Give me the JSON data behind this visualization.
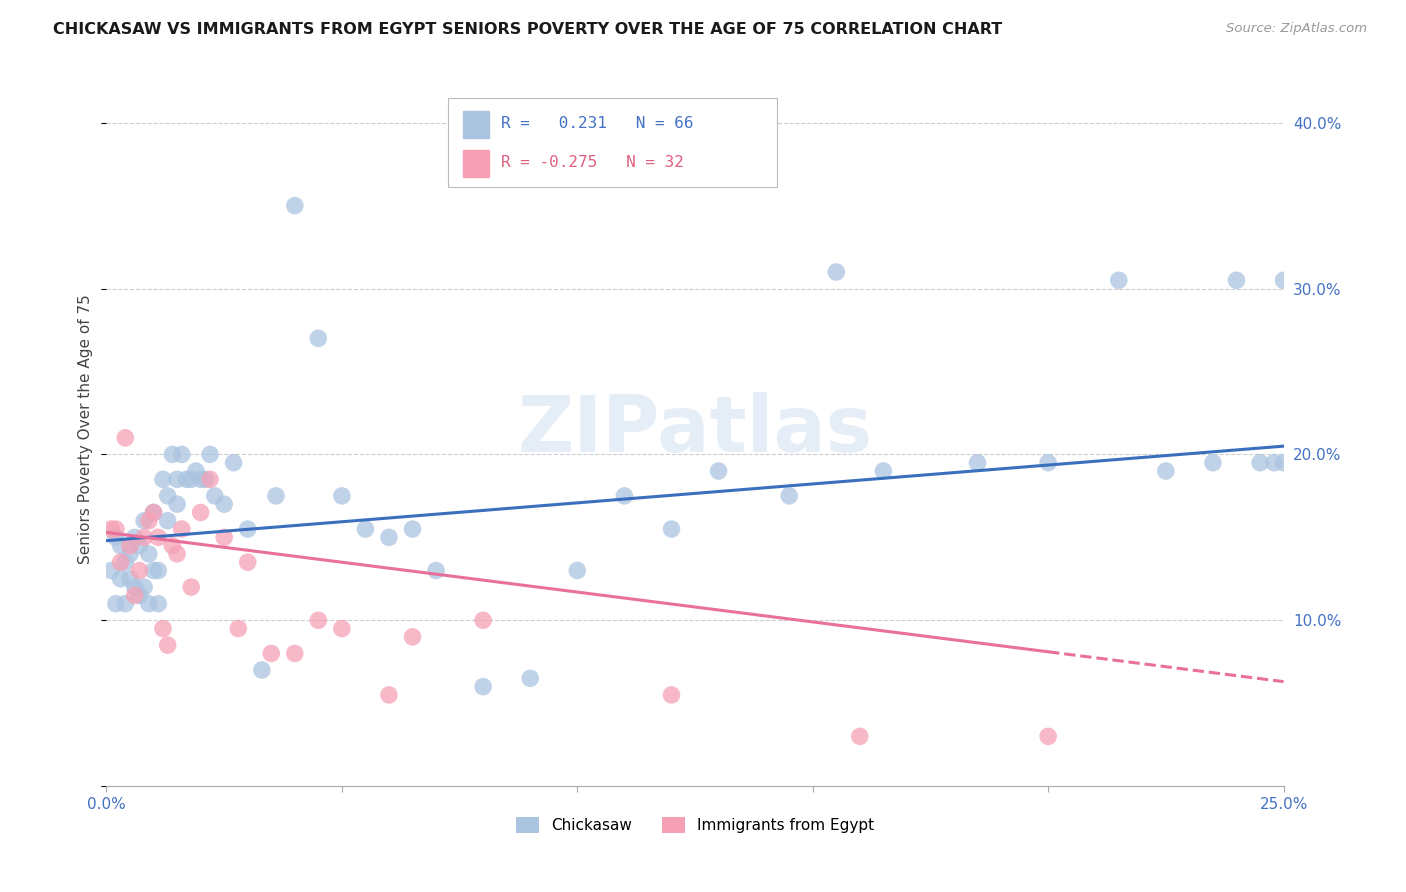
{
  "title": "CHICKASAW VS IMMIGRANTS FROM EGYPT SENIORS POVERTY OVER THE AGE OF 75 CORRELATION CHART",
  "source": "Source: ZipAtlas.com",
  "ylabel": "Seniors Poverty Over the Age of 75",
  "xlim": [
    0.0,
    0.25
  ],
  "ylim": [
    0.0,
    0.43
  ],
  "xticks": [
    0.0,
    0.05,
    0.1,
    0.15,
    0.2,
    0.25
  ],
  "yticks": [
    0.0,
    0.1,
    0.2,
    0.3,
    0.4
  ],
  "ytick_labels": [
    "",
    "10.0%",
    "20.0%",
    "30.0%",
    "40.0%"
  ],
  "xtick_labels": [
    "0.0%",
    "",
    "",
    "",
    "",
    "25.0%"
  ],
  "chickasaw_color": "#aac4e0",
  "egypt_color": "#f5a0b5",
  "line_blue": "#3a6fbe",
  "line_pink": "#e8709a",
  "R_blue": 0.231,
  "N_blue": 66,
  "R_pink": -0.275,
  "N_pink": 32,
  "legend_blue": "Chickasaw",
  "legend_pink": "Immigrants from Egypt",
  "chickasaw_x": [
    0.001,
    0.002,
    0.002,
    0.003,
    0.003,
    0.004,
    0.004,
    0.005,
    0.005,
    0.006,
    0.006,
    0.007,
    0.007,
    0.008,
    0.008,
    0.009,
    0.009,
    0.01,
    0.01,
    0.011,
    0.011,
    0.012,
    0.013,
    0.013,
    0.014,
    0.015,
    0.015,
    0.016,
    0.017,
    0.018,
    0.019,
    0.02,
    0.021,
    0.022,
    0.023,
    0.025,
    0.027,
    0.03,
    0.033,
    0.036,
    0.04,
    0.045,
    0.05,
    0.055,
    0.06,
    0.065,
    0.07,
    0.08,
    0.09,
    0.1,
    0.11,
    0.12,
    0.13,
    0.145,
    0.155,
    0.165,
    0.185,
    0.2,
    0.215,
    0.225,
    0.235,
    0.24,
    0.245,
    0.248,
    0.25,
    0.25
  ],
  "chickasaw_y": [
    0.13,
    0.15,
    0.11,
    0.125,
    0.145,
    0.11,
    0.135,
    0.125,
    0.14,
    0.12,
    0.15,
    0.115,
    0.145,
    0.12,
    0.16,
    0.11,
    0.14,
    0.13,
    0.165,
    0.11,
    0.13,
    0.185,
    0.175,
    0.16,
    0.2,
    0.17,
    0.185,
    0.2,
    0.185,
    0.185,
    0.19,
    0.185,
    0.185,
    0.2,
    0.175,
    0.17,
    0.195,
    0.155,
    0.07,
    0.175,
    0.35,
    0.27,
    0.175,
    0.155,
    0.15,
    0.155,
    0.13,
    0.06,
    0.065,
    0.13,
    0.175,
    0.155,
    0.19,
    0.175,
    0.31,
    0.19,
    0.195,
    0.195,
    0.305,
    0.19,
    0.195,
    0.305,
    0.195,
    0.195,
    0.305,
    0.195
  ],
  "egypt_x": [
    0.001,
    0.002,
    0.003,
    0.004,
    0.005,
    0.006,
    0.007,
    0.008,
    0.009,
    0.01,
    0.011,
    0.012,
    0.013,
    0.014,
    0.015,
    0.016,
    0.018,
    0.02,
    0.022,
    0.025,
    0.028,
    0.03,
    0.035,
    0.04,
    0.045,
    0.05,
    0.06,
    0.065,
    0.08,
    0.12,
    0.16,
    0.2
  ],
  "egypt_y": [
    0.155,
    0.155,
    0.135,
    0.21,
    0.145,
    0.115,
    0.13,
    0.15,
    0.16,
    0.165,
    0.15,
    0.095,
    0.085,
    0.145,
    0.14,
    0.155,
    0.12,
    0.165,
    0.185,
    0.15,
    0.095,
    0.135,
    0.08,
    0.08,
    0.1,
    0.095,
    0.055,
    0.09,
    0.1,
    0.055,
    0.03,
    0.03
  ],
  "line_blue_x0": 0.0,
  "line_blue_y0": 0.148,
  "line_blue_x1": 0.25,
  "line_blue_y1": 0.205,
  "line_pink_x0": 0.0,
  "line_pink_y0": 0.153,
  "line_pink_x1": 0.25,
  "line_pink_y1": 0.063,
  "line_pink_solid_end": 0.2
}
